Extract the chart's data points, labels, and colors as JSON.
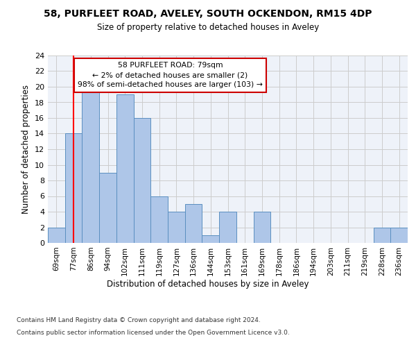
{
  "title": "58, PURFLEET ROAD, AVELEY, SOUTH OCKENDON, RM15 4DP",
  "subtitle": "Size of property relative to detached houses in Aveley",
  "xlabel": "Distribution of detached houses by size in Aveley",
  "ylabel": "Number of detached properties",
  "footer_line1": "Contains HM Land Registry data © Crown copyright and database right 2024.",
  "footer_line2": "Contains public sector information licensed under the Open Government Licence v3.0.",
  "bar_labels": [
    "69sqm",
    "77sqm",
    "86sqm",
    "94sqm",
    "102sqm",
    "111sqm",
    "119sqm",
    "127sqm",
    "136sqm",
    "144sqm",
    "153sqm",
    "161sqm",
    "169sqm",
    "178sqm",
    "186sqm",
    "194sqm",
    "203sqm",
    "211sqm",
    "219sqm",
    "228sqm",
    "236sqm"
  ],
  "bar_values": [
    2,
    14,
    20,
    9,
    19,
    16,
    6,
    4,
    5,
    1,
    4,
    0,
    4,
    0,
    0,
    0,
    0,
    0,
    0,
    2,
    2
  ],
  "bar_color": "#aec6e8",
  "bar_edge_color": "#5a8fc0",
  "grid_color": "#cccccc",
  "bg_color": "#eef2f9",
  "red_line_x": 1.0,
  "annotation_text": "58 PURFLEET ROAD: 79sqm\n← 2% of detached houses are smaller (2)\n98% of semi-detached houses are larger (103) →",
  "annotation_box_color": "#ffffff",
  "annotation_box_edge_color": "#cc0000",
  "ylim": [
    0,
    24
  ],
  "yticks": [
    0,
    2,
    4,
    6,
    8,
    10,
    12,
    14,
    16,
    18,
    20,
    22,
    24
  ]
}
